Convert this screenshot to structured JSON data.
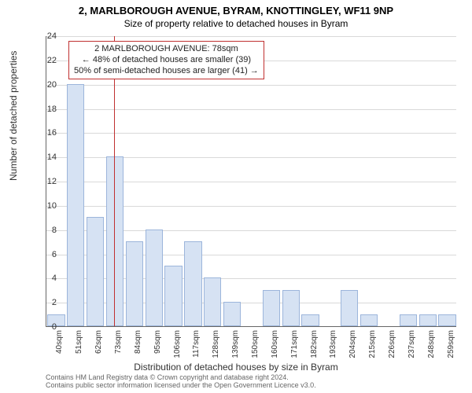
{
  "titles": {
    "line1": "2, MARLBOROUGH AVENUE, BYRAM, KNOTTINGLEY, WF11 9NP",
    "line2": "Size of property relative to detached houses in Byram"
  },
  "axes": {
    "ylabel": "Number of detached properties",
    "xlabel": "Distribution of detached houses by size in Byram",
    "ylim": [
      0,
      24
    ],
    "ytick_step": 2,
    "grid_color": "#d9d9d9",
    "axis_color": "#666666",
    "tick_fontsize": 11,
    "label_fontsize": 12
  },
  "chart": {
    "type": "histogram",
    "bar_color": "#d6e2f3",
    "bar_border": "#9cb5db",
    "background_color": "#ffffff",
    "categories": [
      "40sqm",
      "51sqm",
      "62sqm",
      "73sqm",
      "84sqm",
      "95sqm",
      "106sqm",
      "117sqm",
      "128sqm",
      "139sqm",
      "150sqm",
      "160sqm",
      "171sqm",
      "182sqm",
      "193sqm",
      "204sqm",
      "215sqm",
      "226sqm",
      "237sqm",
      "248sqm",
      "259sqm"
    ],
    "values": [
      1,
      20,
      9,
      14,
      7,
      8,
      5,
      7,
      4,
      2,
      0,
      3,
      3,
      1,
      0,
      3,
      1,
      0,
      1,
      1,
      1
    ],
    "bar_width": 0.9
  },
  "annotation": {
    "border_color": "#c03030",
    "text_color": "#222222",
    "bg_color": "#ffffff",
    "line1": "2 MARLBOROUGH AVENUE: 78sqm",
    "line2": "← 48% of detached houses are smaller (39)",
    "line3": "50% of semi-detached houses are larger (41) →",
    "ref_sqm": 78,
    "x_index_position": 3.45
  },
  "footer": {
    "line1": "Contains HM Land Registry data © Crown copyright and database right 2024.",
    "line2": "Contains public sector information licensed under the Open Government Licence v3.0.",
    "color": "#666666",
    "fontsize": 9
  }
}
